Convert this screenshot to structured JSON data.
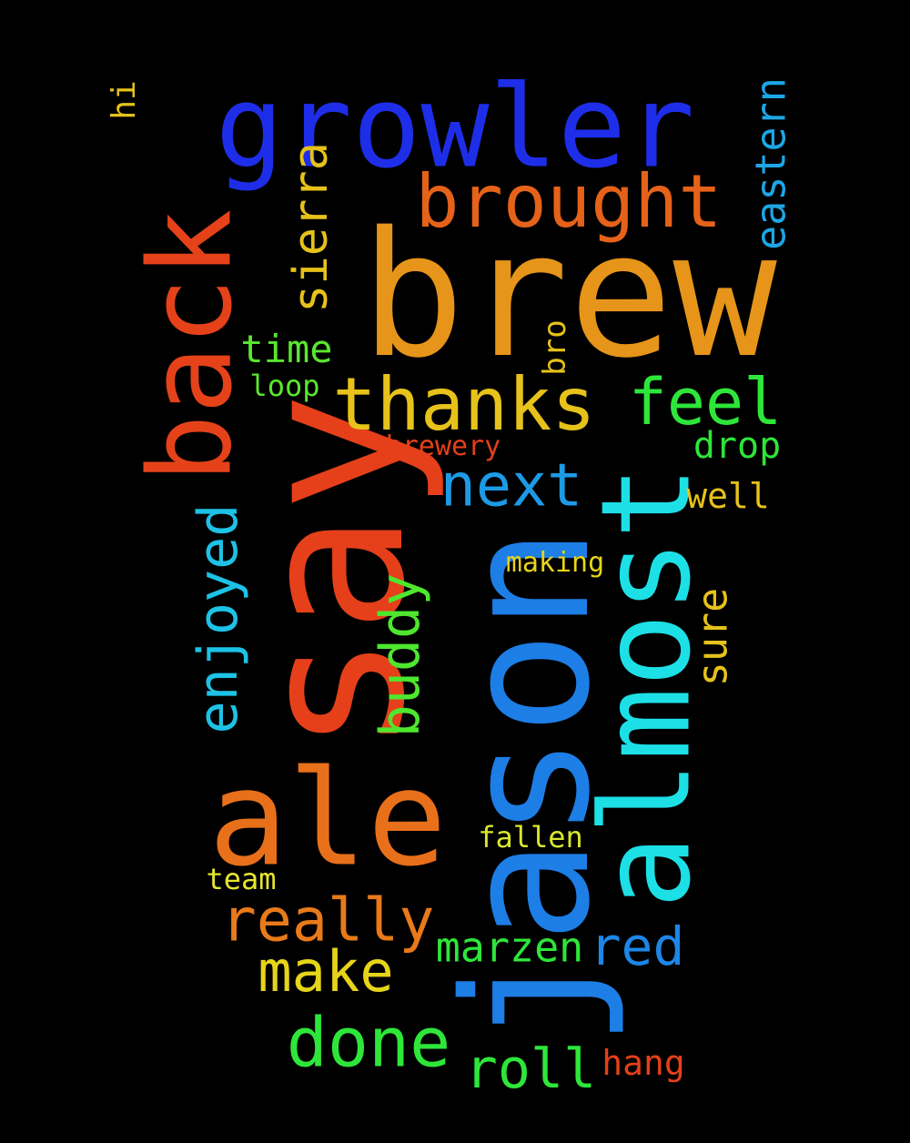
{
  "words": [
    {
      "text": "brew",
      "color": "#e6951a"
    },
    {
      "text": "say",
      "color": "#e5401a"
    },
    {
      "text": "jason",
      "color": "#1d7ee6"
    },
    {
      "text": "growler",
      "color": "#1e2ee8"
    },
    {
      "text": "almost",
      "color": "#1de0e6"
    },
    {
      "text": "ale",
      "color": "#e8701a"
    },
    {
      "text": "back",
      "color": "#e5421a"
    },
    {
      "text": "brought",
      "color": "#e5621a"
    },
    {
      "text": "thanks",
      "color": "#e6c21a"
    },
    {
      "text": "feel",
      "color": "#2ee63a"
    },
    {
      "text": "next",
      "color": "#1d9ae6"
    },
    {
      "text": "enjoyed",
      "color": "#1dc2e6"
    },
    {
      "text": "buddy",
      "color": "#4ee62e"
    },
    {
      "text": "really",
      "color": "#e87a1a"
    },
    {
      "text": "make",
      "color": "#e6d41a"
    },
    {
      "text": "done",
      "color": "#2ee63a"
    },
    {
      "text": "roll",
      "color": "#2ee63a"
    },
    {
      "text": "red",
      "color": "#1d86e6"
    },
    {
      "text": "marzen",
      "color": "#2ee63a"
    },
    {
      "text": "sierra",
      "color": "#e6c21a"
    },
    {
      "text": "eastern",
      "color": "#1da6e6"
    },
    {
      "text": "sure",
      "color": "#e6c21a"
    },
    {
      "text": "time",
      "color": "#5ae62e"
    },
    {
      "text": "drop",
      "color": "#2ee63a"
    },
    {
      "text": "well",
      "color": "#e6c21a"
    },
    {
      "text": "hang",
      "color": "#e5401a"
    },
    {
      "text": "hi",
      "color": "#e6c21a"
    },
    {
      "text": "bro",
      "color": "#e6c21a"
    },
    {
      "text": "loop",
      "color": "#5ae62e"
    },
    {
      "text": "brewery",
      "color": "#e5401a"
    },
    {
      "text": "making",
      "color": "#e6d41a"
    },
    {
      "text": "fallen",
      "color": "#d9e62e"
    },
    {
      "text": "team",
      "color": "#e6e62e"
    }
  ]
}
